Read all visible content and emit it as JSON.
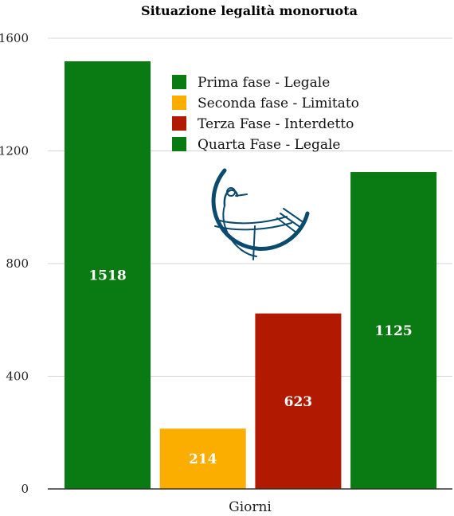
{
  "chart_data": {
    "type": "bar",
    "title": "Situazione legalità monoruota",
    "xlabel": "Giorni",
    "ylabel": "",
    "ylim": [
      0,
      1600
    ],
    "yticks": [
      0,
      400,
      800,
      1200,
      1600
    ],
    "grid": true,
    "legend_position": "top-center",
    "series": [
      {
        "name": "Prima fase - Legale",
        "values": [
          1518
        ],
        "color": "#0a7a12"
      },
      {
        "name": "Seconda fase - Limitato",
        "values": [
          214
        ],
        "color": "#fbad00"
      },
      {
        "name": "Terza Fase - Interdetto",
        "values": [
          623
        ],
        "color": "#b21a00"
      },
      {
        "name": "Quarta Fase - Legale",
        "values": [
          1125
        ],
        "color": "#0a7a12"
      }
    ],
    "logo_color": "#0b4a6f"
  }
}
